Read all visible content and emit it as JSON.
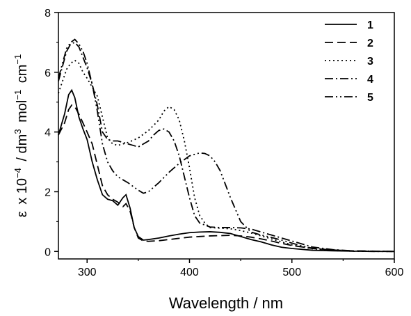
{
  "chart_data": {
    "type": "line",
    "title": "",
    "xlabel": "Wavelength / nm",
    "ylabel_parts": {
      "eps": "ε",
      "x10": "x 10",
      "exp4": "−4",
      "slash": "/ dm",
      "exp3": "3",
      "mol": "mol",
      "expm1a": "−1",
      "cm": "cm",
      "expm1b": "−1"
    },
    "xlim": [
      272,
      600
    ],
    "ylim": [
      -0.25,
      8
    ],
    "xticks": [
      300,
      400,
      500,
      600
    ],
    "yticks": [
      0,
      2,
      4,
      6,
      8
    ],
    "grid": false,
    "legend_position": "top-right",
    "series": [
      {
        "name": "1",
        "dash": "solid",
        "x": [
          272,
          278,
          282,
          285,
          288,
          292,
          296,
          300,
          305,
          310,
          315,
          320,
          325,
          330,
          335,
          338,
          342,
          346,
          350,
          355,
          360,
          370,
          380,
          390,
          400,
          410,
          420,
          430,
          440,
          450,
          460,
          470,
          480,
          490,
          500,
          520,
          540,
          560,
          580,
          600
        ],
        "y": [
          3.9,
          4.6,
          5.25,
          5.4,
          5.15,
          4.5,
          4.1,
          3.75,
          3.0,
          2.4,
          1.9,
          1.75,
          1.7,
          1.55,
          1.8,
          1.9,
          1.45,
          0.8,
          0.5,
          0.38,
          0.4,
          0.45,
          0.52,
          0.58,
          0.63,
          0.65,
          0.66,
          0.64,
          0.6,
          0.5,
          0.4,
          0.32,
          0.22,
          0.14,
          0.1,
          0.04,
          0.02,
          0.01,
          0.0,
          0.0
        ]
      },
      {
        "name": "2",
        "dash": "dash",
        "x": [
          272,
          278,
          282,
          285,
          288,
          292,
          296,
          300,
          305,
          310,
          315,
          320,
          325,
          330,
          335,
          338,
          342,
          346,
          350,
          355,
          360,
          370,
          380,
          390,
          400,
          410,
          420,
          430,
          440,
          450,
          460,
          470,
          480,
          490,
          500,
          520,
          540,
          560,
          580,
          600
        ],
        "y": [
          3.9,
          4.3,
          4.75,
          4.9,
          4.85,
          4.6,
          4.3,
          4.0,
          3.6,
          2.9,
          2.2,
          1.9,
          1.75,
          1.65,
          1.5,
          1.6,
          1.35,
          0.8,
          0.45,
          0.35,
          0.34,
          0.36,
          0.4,
          0.44,
          0.48,
          0.5,
          0.52,
          0.53,
          0.54,
          0.52,
          0.48,
          0.42,
          0.35,
          0.27,
          0.2,
          0.1,
          0.05,
          0.02,
          0.01,
          0.0
        ]
      },
      {
        "name": "3",
        "dash": "dot",
        "x": [
          272,
          276,
          280,
          284,
          288,
          292,
          296,
          300,
          305,
          310,
          315,
          320,
          325,
          330,
          340,
          350,
          360,
          370,
          375,
          380,
          385,
          390,
          395,
          400,
          405,
          410,
          415,
          420,
          430,
          440,
          450,
          460,
          470,
          480,
          490,
          500,
          520,
          540,
          560,
          600
        ],
        "y": [
          5.3,
          5.7,
          6.1,
          6.3,
          6.4,
          6.3,
          6.0,
          5.8,
          5.5,
          5.2,
          4.5,
          3.8,
          3.6,
          3.55,
          3.65,
          3.8,
          4.05,
          4.4,
          4.7,
          4.85,
          4.75,
          4.4,
          3.7,
          2.8,
          1.8,
          1.2,
          0.95,
          0.8,
          0.78,
          0.76,
          0.7,
          0.62,
          0.52,
          0.42,
          0.32,
          0.22,
          0.09,
          0.03,
          0.01,
          0.0
        ]
      },
      {
        "name": "4",
        "dash": "dashdot",
        "x": [
          272,
          276,
          280,
          284,
          288,
          292,
          296,
          300,
          305,
          310,
          315,
          320,
          325,
          330,
          340,
          350,
          360,
          365,
          370,
          375,
          380,
          385,
          390,
          395,
          400,
          405,
          410,
          420,
          430,
          440,
          450,
          460,
          470,
          480,
          490,
          500,
          520,
          540,
          560,
          600
        ],
        "y": [
          5.7,
          6.2,
          6.7,
          6.95,
          7.0,
          6.85,
          6.5,
          6.15,
          5.6,
          4.9,
          4.0,
          3.75,
          3.7,
          3.7,
          3.6,
          3.5,
          3.7,
          3.9,
          4.05,
          4.1,
          4.0,
          3.7,
          3.2,
          2.5,
          1.8,
          1.2,
          0.95,
          0.82,
          0.8,
          0.8,
          0.79,
          0.75,
          0.65,
          0.55,
          0.45,
          0.35,
          0.15,
          0.06,
          0.02,
          0.0
        ]
      },
      {
        "name": "5",
        "dash": "dashdotdot",
        "x": [
          272,
          276,
          280,
          284,
          288,
          292,
          296,
          300,
          305,
          310,
          315,
          320,
          325,
          330,
          340,
          350,
          355,
          360,
          370,
          380,
          390,
          400,
          410,
          415,
          420,
          425,
          430,
          440,
          450,
          460,
          470,
          480,
          490,
          500,
          510,
          520,
          540,
          560,
          580,
          600
        ],
        "y": [
          5.8,
          6.3,
          6.8,
          7.0,
          7.1,
          6.95,
          6.7,
          6.3,
          5.6,
          4.7,
          3.6,
          3.0,
          2.7,
          2.5,
          2.3,
          2.05,
          1.95,
          2.0,
          2.3,
          2.65,
          2.95,
          3.2,
          3.3,
          3.28,
          3.2,
          3.0,
          2.7,
          1.8,
          1.0,
          0.65,
          0.55,
          0.47,
          0.38,
          0.28,
          0.18,
          0.11,
          0.04,
          0.01,
          0.0,
          0.0
        ]
      }
    ]
  }
}
